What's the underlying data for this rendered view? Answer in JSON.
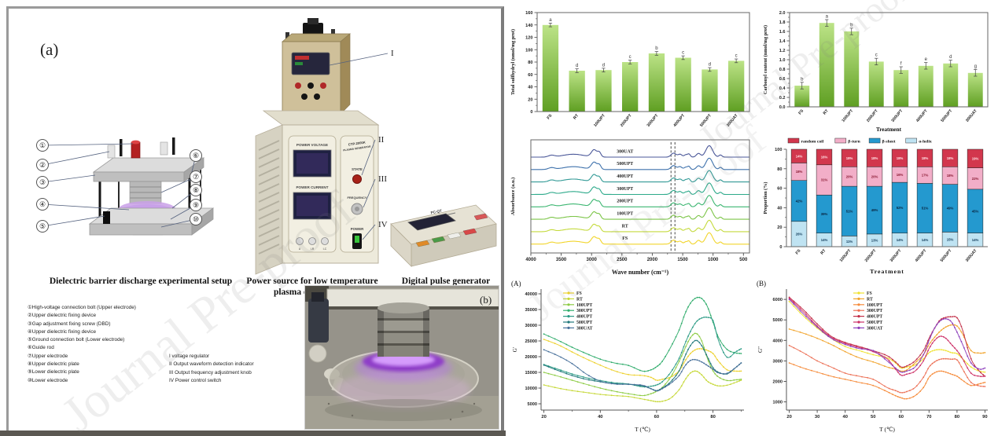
{
  "watermark": "Journal Pre-proof",
  "panel_a": {
    "label": "(a)",
    "photo_label": "(b)",
    "captions": {
      "dbd": "Dielectric barrier discharge experimental setup",
      "power_line1": "Power source for low temperature",
      "power_line2": "plasma experiments",
      "pulse": "Digital pulse generator"
    },
    "device_labels": {
      "power_voltage": "POWER VOLTAGE",
      "power_current": "POWER CURRENT",
      "model_line1": "CTP-2000K",
      "model_line2": "PLASMA GENERATOR",
      "state": "STATE",
      "frequency": "FREQUENCY",
      "power": "POWER",
      "jacks": [
        "U",
        "I-R",
        "I-C"
      ],
      "pulse_model": "PC-QT"
    },
    "callouts_left": [
      "①",
      "②",
      "③",
      "④",
      "⑤"
    ],
    "callouts_right": [
      "⑥",
      "⑦",
      "⑧",
      "⑨",
      "⑩"
    ],
    "roman_markers": [
      "I",
      "II",
      "III",
      "IV"
    ],
    "legend_numbered": [
      "①High-voltage connection bolt (Upper electrode)",
      "②Upper dielectric fixing device",
      "③Gap adjustment fixing screw (DBD)",
      "④Upper dielectric fixing device",
      "⑤Ground connection bolt (Lower electrode)",
      "⑥Guide rod",
      "⑦Upper electrode",
      "⑧Upper dielectric plate",
      "⑨Lower dielectric plate",
      "⑩Lower electrode"
    ],
    "legend_roman": [
      "I  voltage regulator",
      "II  Output waveform detection indicator",
      "III  Output frequency adjustment knob",
      "IV  Power control switch"
    ]
  },
  "chart_data": [
    {
      "id": "sulfhydryl",
      "type": "bar",
      "title": "",
      "categories": [
        "FS",
        "RT",
        "100UPT",
        "200UPT",
        "300UPT",
        "400UPT",
        "500UPT",
        "300UAT"
      ],
      "values": [
        140,
        66,
        67,
        80,
        94,
        87,
        68,
        82
      ],
      "letters": [
        "a",
        "d",
        "d",
        "c",
        "b",
        "c",
        "d",
        "c"
      ],
      "error": 3,
      "ylabel": "Total sulfhydryl  (nmol/mg prot)",
      "xlabel": "",
      "ylim": [
        0,
        160
      ],
      "ytick": 20,
      "bar_top": "#bce387",
      "bar_bottom": "#5f9f22"
    },
    {
      "id": "carbonyl",
      "type": "bar",
      "title": "",
      "categories": [
        "FS",
        "RT",
        "100UPT",
        "200UPT",
        "300UPT",
        "400UPT",
        "500UPT",
        "300UAT"
      ],
      "values": [
        0.45,
        1.78,
        1.6,
        0.96,
        0.78,
        0.87,
        0.92,
        0.72
      ],
      "letters": [
        "b",
        "a",
        "b",
        "c",
        "f",
        "e",
        "d",
        "g"
      ],
      "error": 0.07,
      "ylabel": "Carbonyl content (nmol/mg prot)",
      "xlabel": "Treatment",
      "ylim": [
        0,
        2.0
      ],
      "ytick": 0.2,
      "bar_top": "#bce387",
      "bar_bottom": "#5f9f22"
    },
    {
      "id": "ftir",
      "type": "spectra",
      "xlabel": "Wave number (cm⁻¹)",
      "ylabel": "Absorbance (a.u.)",
      "xlim": [
        4000,
        400
      ],
      "x_ticks": [
        4000,
        3500,
        3000,
        2500,
        2000,
        1500,
        1000,
        500
      ],
      "dashed_lines": [
        1693,
        1627
      ],
      "series": [
        {
          "name": "FS",
          "color": "#f2d52b"
        },
        {
          "name": "RT",
          "color": "#c4da3c"
        },
        {
          "name": "100UPT",
          "color": "#7cc548"
        },
        {
          "name": "200UPT",
          "color": "#3cb671"
        },
        {
          "name": "300UPT",
          "color": "#2ca98a"
        },
        {
          "name": "400UPT",
          "color": "#329a96"
        },
        {
          "name": "500UPT",
          "color": "#3f72ac"
        },
        {
          "name": "300UAT",
          "color": "#4b5899"
        }
      ],
      "peaks": [
        [
          3660,
          50,
          0.12
        ],
        [
          3300,
          170,
          0.2
        ],
        [
          2958,
          45,
          0.5
        ],
        [
          2872,
          28,
          0.3
        ],
        [
          1650,
          40,
          0.28
        ],
        [
          1543,
          33,
          0.2
        ],
        [
          1450,
          24,
          0.16
        ],
        [
          1398,
          22,
          0.22
        ],
        [
          1240,
          34,
          0.26
        ],
        [
          1063,
          55,
          0.8
        ],
        [
          878,
          24,
          0.15
        ]
      ]
    },
    {
      "id": "secondary",
      "type": "stacked",
      "ylabel": "Proportion (%)",
      "xlabel": "Treatment",
      "ylim": [
        0,
        100
      ],
      "ytick": 20,
      "categories": [
        "FS",
        "RT",
        "100UPT",
        "200UPT",
        "300UPT",
        "400UPT",
        "500UPT",
        "300UAT"
      ],
      "legend_order": [
        "random coil",
        "β-turn",
        "β-sheet",
        "α-helix"
      ],
      "series": [
        {
          "name": "α-helix",
          "color": "#bfe3f2",
          "text_color": "#17405e",
          "values": [
            26,
            14,
            11,
            13,
            14,
            14,
            15,
            14
          ]
        },
        {
          "name": "β-sheet",
          "color": "#2499cf",
          "text_color": "#0a2540",
          "values": [
            42,
            39,
            51,
            49,
            52,
            51,
            49,
            45
          ]
        },
        {
          "name": "β-turn",
          "color": "#f2aec8",
          "text_color": "#8c1d35",
          "values": [
            18,
            31,
            20,
            20,
            16,
            17,
            18,
            22
          ]
        },
        {
          "name": "random coil",
          "color": "#d2374d",
          "text_color": "#ffe3e6",
          "values": [
            14,
            16,
            18,
            18,
            18,
            18,
            18,
            19
          ]
        }
      ]
    },
    {
      "id": "gprime",
      "type": "rheo",
      "panel_label": "(A)",
      "xlabel": "T (℃)",
      "ylabel": "G′",
      "x": [
        20,
        25,
        30,
        35,
        40,
        45,
        50,
        55,
        58,
        60,
        62,
        65,
        68,
        70,
        72,
        74,
        76,
        78,
        80,
        82,
        85,
        88,
        90
      ],
      "x_ticks": [
        20,
        40,
        60,
        80
      ],
      "ylim": [
        3000,
        41500
      ],
      "y_ticks": [
        5000,
        10000,
        15000,
        20000,
        25000,
        30000,
        35000,
        40000
      ],
      "series": [
        {
          "name": "FS",
          "color": "#edd12c",
          "values": [
            25500,
            23800,
            21500,
            19300,
            17300,
            15500,
            14300,
            14000,
            13400,
            12500,
            12800,
            13500,
            15500,
            18500,
            21000,
            22300,
            22500,
            22000,
            21000,
            18500,
            15800,
            15400,
            15400
          ]
        },
        {
          "name": "RT",
          "color": "#c6d838",
          "values": [
            11000,
            10000,
            9200,
            8600,
            8000,
            7600,
            7300,
            6500,
            6000,
            5700,
            5800,
            6800,
            9500,
            12500,
            14800,
            15400,
            14200,
            12200,
            11200,
            10700,
            10900,
            11800,
            12500
          ]
        },
        {
          "name": "100UPT",
          "color": "#8ccb43",
          "values": [
            15000,
            13800,
            12500,
            11200,
            10000,
            9000,
            8200,
            7600,
            8200,
            9000,
            10200,
            13500,
            18500,
            22500,
            26000,
            27400,
            25000,
            19500,
            15500,
            13500,
            12400,
            12600,
            12800
          ]
        },
        {
          "name": "300UPT",
          "color": "#31ad6d",
          "values": [
            27200,
            25200,
            23000,
            21000,
            19200,
            18000,
            17200,
            15400,
            15800,
            16800,
            18500,
            23000,
            28500,
            33500,
            37000,
            38700,
            38500,
            36000,
            31000,
            26000,
            22300,
            21200,
            21000
          ]
        },
        {
          "name": "400UPT",
          "color": "#2b9b85",
          "values": [
            17500,
            16000,
            14500,
            13300,
            12400,
            11700,
            11300,
            10400,
            10600,
            11000,
            12000,
            15000,
            19500,
            24000,
            28000,
            31000,
            32300,
            32500,
            31500,
            25000,
            19800,
            21500,
            22500
          ]
        },
        {
          "name": "500UPT",
          "color": "#20787a",
          "values": [
            17300,
            15600,
            14000,
            12800,
            12000,
            11400,
            11200,
            10700,
            9800,
            9200,
            10000,
            12000,
            15500,
            20000,
            23500,
            25200,
            23500,
            20000,
            16500,
            15000,
            14500,
            16500,
            18000
          ]
        },
        {
          "name": "300UAT",
          "color": "#49719b",
          "values": [
            22200,
            20300,
            17800,
            14500,
            12200,
            11300,
            11200,
            10900,
            9800,
            9100,
            9800,
            11500,
            14000,
            17000,
            18800,
            19000,
            18300,
            17200,
            16000,
            14800,
            14700,
            16500,
            18000
          ]
        }
      ]
    },
    {
      "id": "gdoubleprime",
      "type": "rheo",
      "panel_label": "(B)",
      "xlabel": "T (℃)",
      "ylabel": "G″",
      "x": [
        20,
        25,
        30,
        35,
        40,
        45,
        50,
        55,
        58,
        60,
        62,
        65,
        68,
        70,
        72,
        74,
        76,
        78,
        80,
        82,
        85,
        88,
        90
      ],
      "x_ticks": [
        20,
        30,
        40,
        50,
        60,
        70,
        80,
        90
      ],
      "ylim": [
        600,
        6500
      ],
      "y_ticks": [
        1000,
        2000,
        3000,
        4000,
        5000,
        6000
      ],
      "series": [
        {
          "name": "FS",
          "color": "#efe22f",
          "values": [
            5900,
            5200,
            4600,
            4100,
            3700,
            3500,
            3300,
            3150,
            2900,
            2650,
            2700,
            2800,
            3100,
            3400,
            3520,
            3550,
            3500,
            3400,
            3350,
            3100,
            2700,
            2500,
            2450
          ]
        },
        {
          "name": "RT",
          "color": "#f1a32b",
          "values": [
            4550,
            4350,
            4100,
            3800,
            3450,
            3150,
            2950,
            2700,
            2600,
            2500,
            2550,
            2900,
            3300,
            3800,
            4150,
            4450,
            4650,
            4750,
            4700,
            4300,
            3500,
            3380,
            3400
          ]
        },
        {
          "name": "100UPT",
          "color": "#f68b3a",
          "values": [
            2900,
            2650,
            2450,
            2250,
            2100,
            1950,
            1800,
            1500,
            1300,
            1200,
            1150,
            1300,
            1700,
            2200,
            2420,
            2500,
            2450,
            2350,
            2250,
            2050,
            1800,
            1880,
            1950
          ]
        },
        {
          "name": "300UPT",
          "color": "#ec7055",
          "values": [
            3750,
            3400,
            3000,
            2700,
            2400,
            2250,
            2100,
            1700,
            1550,
            1450,
            1500,
            1700,
            2200,
            2700,
            2950,
            3080,
            3100,
            3080,
            3050,
            2600,
            1950,
            1780,
            1750
          ]
        },
        {
          "name": "400UPT",
          "color": "#c22f48",
          "values": [
            6100,
            5500,
            4800,
            4200,
            3900,
            3700,
            3500,
            3250,
            2950,
            2700,
            2750,
            3000,
            3500,
            4100,
            4600,
            5000,
            5120,
            5150,
            5100,
            4500,
            3100,
            2500,
            2250
          ]
        },
        {
          "name": "500UPT",
          "color": "#cc2f66",
          "values": [
            6050,
            5400,
            4700,
            4150,
            3850,
            3650,
            3450,
            3100,
            2600,
            2300,
            2350,
            2500,
            3000,
            3600,
            4000,
            4200,
            4100,
            3800,
            3500,
            3100,
            2400,
            2250,
            2250
          ]
        },
        {
          "name": "300UAT",
          "color": "#8d3fbb",
          "values": [
            6000,
            5300,
            4650,
            4100,
            3800,
            3600,
            3500,
            3000,
            2650,
            2450,
            2500,
            2700,
            3300,
            4000,
            4600,
            4950,
            5050,
            4900,
            4400,
            3800,
            2900,
            2600,
            2650
          ]
        }
      ]
    }
  ]
}
